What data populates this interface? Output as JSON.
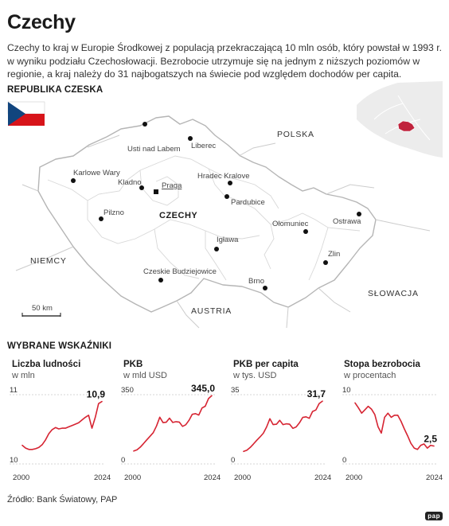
{
  "header": {
    "title": "Czechy",
    "lead": "Czechy to kraj w Europie Środkowej z populacją przekraczającą 10 mln osób, który powstał w 1993 r. w wyniku podziału Czechosłowacji. Bezrobocie utrzymuje się na jednym z niższych poziomów w regionie, a kraj należy do 31 najbogatszych na świecie pod względem dochodów per capita."
  },
  "map": {
    "section_title": "REPUBLIKA CZESKA",
    "country_name": "CZECHY",
    "neighbors": [
      "POLSKA",
      "NIEMCY",
      "AUSTRIA",
      "SŁOWACJA"
    ],
    "capital": "Praga",
    "cities": [
      "Usti nad Labem",
      "Liberec",
      "Karlowe Wary",
      "Kladno",
      "Hradec Kralove",
      "Pardubice",
      "Pilzno",
      "Ołomuniec",
      "Ostrawa",
      "Igława",
      "Zlin",
      "Czeskie Budziejowice",
      "Brno"
    ],
    "scale_label": "50 km",
    "colors": {
      "border": "#b5b5b5",
      "inset_highlight": "#c0233d",
      "city_dot": "#111111"
    }
  },
  "indicators": {
    "section_title": "WYBRANE WSKAŹNIKI",
    "color": "#d62432"
  },
  "chart_data": [
    {
      "type": "line",
      "title": "Liczba ludności",
      "unit": "w mln",
      "ylim": [
        10,
        11
      ],
      "x": [
        2000,
        2001,
        2002,
        2003,
        2004,
        2005,
        2006,
        2007,
        2008,
        2009,
        2010,
        2011,
        2012,
        2013,
        2014,
        2015,
        2016,
        2017,
        2018,
        2019,
        2020,
        2021,
        2022,
        2023,
        2024
      ],
      "values": [
        10.26,
        10.22,
        10.2,
        10.2,
        10.21,
        10.23,
        10.27,
        10.34,
        10.43,
        10.49,
        10.52,
        10.5,
        10.51,
        10.51,
        10.53,
        10.55,
        10.57,
        10.59,
        10.63,
        10.67,
        10.7,
        10.51,
        10.67,
        10.87,
        10.9
      ],
      "tick_labels": {
        "ymin": "10",
        "ymax": "11",
        "xstart": "2000",
        "xend": "2024"
      },
      "last_label": "10,9"
    },
    {
      "type": "line",
      "title": "PKB",
      "unit": "w mld USD",
      "ylim": [
        0,
        350
      ],
      "x": [
        2000,
        2001,
        2002,
        2003,
        2004,
        2005,
        2006,
        2007,
        2008,
        2009,
        2010,
        2011,
        2012,
        2013,
        2014,
        2015,
        2016,
        2017,
        2018,
        2019,
        2020,
        2021,
        2022,
        2023,
        2024
      ],
      "values": [
        62,
        68,
        82,
        100,
        119,
        137,
        156,
        190,
        235,
        207,
        209,
        230,
        208,
        212,
        210,
        188,
        196,
        219,
        250,
        253,
        246,
        282,
        291,
        330,
        345
      ],
      "tick_labels": {
        "ymin": "0",
        "ymax": "350",
        "xstart": "2000",
        "xend": "2024"
      },
      "last_label": "345,0"
    },
    {
      "type": "line",
      "title": "PKB per capita",
      "unit": "w tys. USD",
      "ylim": [
        0,
        35
      ],
      "x": [
        2000,
        2001,
        2002,
        2003,
        2004,
        2005,
        2006,
        2007,
        2008,
        2009,
        2010,
        2011,
        2012,
        2013,
        2014,
        2015,
        2016,
        2017,
        2018,
        2019,
        2020,
        2021,
        2022,
        2023,
        2024
      ],
      "values": [
        6.0,
        6.6,
        8.0,
        9.8,
        11.7,
        13.4,
        15.3,
        18.5,
        22.7,
        19.7,
        19.9,
        21.9,
        19.7,
        20.1,
        19.9,
        17.8,
        18.5,
        20.6,
        23.4,
        23.7,
        22.9,
        26.4,
        27.2,
        30.5,
        31.7
      ],
      "tick_labels": {
        "ymin": "0",
        "ymax": "35",
        "xstart": "2000",
        "xend": "2024"
      },
      "last_label": "31,7"
    },
    {
      "type": "line",
      "title": "Stopa bezrobocia",
      "unit": "w procentach",
      "ylim": [
        0,
        10
      ],
      "x": [
        2000,
        2001,
        2002,
        2003,
        2004,
        2005,
        2006,
        2007,
        2008,
        2009,
        2010,
        2011,
        2012,
        2013,
        2014,
        2015,
        2016,
        2017,
        2018,
        2019,
        2020,
        2021,
        2022,
        2023,
        2024
      ],
      "values": [
        8.8,
        8.1,
        7.3,
        7.8,
        8.3,
        7.9,
        7.1,
        5.3,
        4.4,
        6.7,
        7.3,
        6.7,
        7.0,
        7.0,
        6.1,
        5.0,
        4.0,
        2.9,
        2.2,
        2.0,
        2.6,
        2.8,
        2.2,
        2.6,
        2.5
      ],
      "tick_labels": {
        "ymin": "0",
        "ymax": "10",
        "xstart": "2000",
        "xend": "2024"
      },
      "last_label": "2,5"
    }
  ],
  "footer": {
    "source": "Źródło: Bank Światowy, PAP",
    "logo": "pap"
  }
}
